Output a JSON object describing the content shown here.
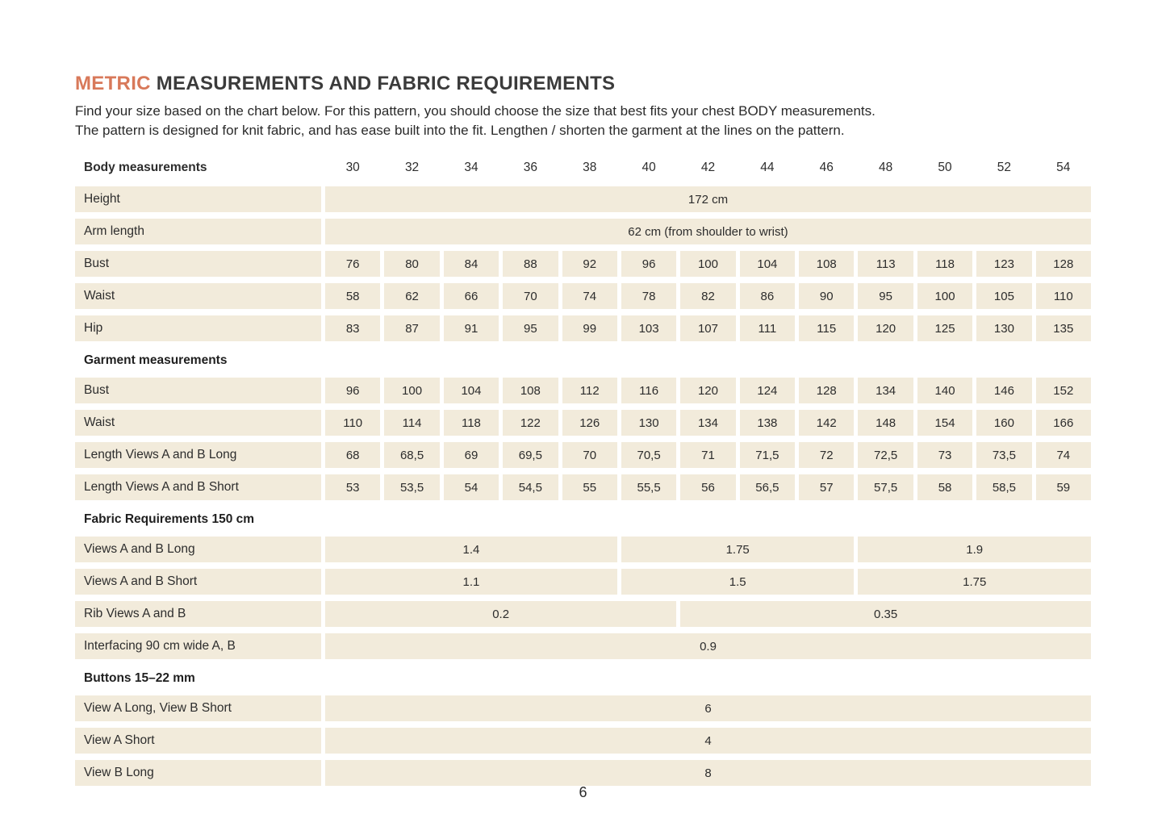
{
  "title": {
    "highlight": "METRIC",
    "rest": "MEASUREMENTS AND FABRIC REQUIREMENTS"
  },
  "intro": {
    "line1": "Find your size based on the chart below. For this pattern, you should choose the size that best fits your chest BODY measurements.",
    "line2": "The pattern is designed for knit fabric, and has ease built into the fit. Lengthen / shorten the garment at the lines on the pattern."
  },
  "colors": {
    "accent_orange": "#d8795a",
    "row_beige": "#f2ebdb"
  },
  "sizes": [
    "30",
    "32",
    "34",
    "36",
    "38",
    "40",
    "42",
    "44",
    "46",
    "48",
    "50",
    "52",
    "54"
  ],
  "sections": [
    {
      "header": "Body measurements",
      "show_sizes": true,
      "rows": [
        {
          "label": "Height",
          "merged": [
            {
              "span": 13,
              "text": "172 cm"
            }
          ]
        },
        {
          "label": "Arm length",
          "merged": [
            {
              "span": 13,
              "text": "62 cm (from shoulder to wrist)"
            }
          ]
        },
        {
          "label": "Bust",
          "values": [
            "76",
            "80",
            "84",
            "88",
            "92",
            "96",
            "100",
            "104",
            "108",
            "113",
            "118",
            "123",
            "128"
          ]
        },
        {
          "label": "Waist",
          "values": [
            "58",
            "62",
            "66",
            "70",
            "74",
            "78",
            "82",
            "86",
            "90",
            "95",
            "100",
            "105",
            "110"
          ]
        },
        {
          "label": "Hip",
          "values": [
            "83",
            "87",
            "91",
            "95",
            "99",
            "103",
            "107",
            "111",
            "115",
            "120",
            "125",
            "130",
            "135"
          ]
        }
      ]
    },
    {
      "header": "Garment measurements",
      "show_sizes": false,
      "rows": [
        {
          "label": "Bust",
          "values": [
            "96",
            "100",
            "104",
            "108",
            "112",
            "116",
            "120",
            "124",
            "128",
            "134",
            "140",
            "146",
            "152"
          ]
        },
        {
          "label": "Waist",
          "values": [
            "110",
            "114",
            "118",
            "122",
            "126",
            "130",
            "134",
            "138",
            "142",
            "148",
            "154",
            "160",
            "166"
          ]
        },
        {
          "label": "Length Views A and B Long",
          "values": [
            "68",
            "68,5",
            "69",
            "69,5",
            "70",
            "70,5",
            "71",
            "71,5",
            "72",
            "72,5",
            "73",
            "73,5",
            "74"
          ]
        },
        {
          "label": "Length Views A and B Short",
          "values": [
            "53",
            "53,5",
            "54",
            "54,5",
            "55",
            "55,5",
            "56",
            "56,5",
            "57",
            "57,5",
            "58",
            "58,5",
            "59"
          ]
        }
      ]
    },
    {
      "header": "Fabric Requirements 150 cm",
      "show_sizes": false,
      "rows": [
        {
          "label": "Views A and B Long",
          "merged": [
            {
              "span": 5,
              "text": "1.4"
            },
            {
              "span": 4,
              "text": "1.75"
            },
            {
              "span": 4,
              "text": "1.9"
            }
          ]
        },
        {
          "label": "Views A and B Short",
          "merged": [
            {
              "span": 5,
              "text": "1.1"
            },
            {
              "span": 4,
              "text": "1.5"
            },
            {
              "span": 4,
              "text": "1.75"
            }
          ]
        },
        {
          "label": "Rib Views A and B",
          "merged": [
            {
              "span": 6,
              "text": "0.2"
            },
            {
              "span": 7,
              "text": "0.35"
            }
          ]
        },
        {
          "label": "Interfacing 90 cm wide A, B",
          "merged": [
            {
              "span": 13,
              "text": "0.9"
            }
          ]
        }
      ]
    },
    {
      "header": "Buttons 15–22 mm",
      "show_sizes": false,
      "rows": [
        {
          "label": "View A Long, View B Short",
          "merged": [
            {
              "span": 13,
              "text": "6"
            }
          ]
        },
        {
          "label": "View A Short",
          "merged": [
            {
              "span": 13,
              "text": "4"
            }
          ]
        },
        {
          "label": "View B Long",
          "merged": [
            {
              "span": 13,
              "text": "8"
            }
          ]
        }
      ]
    }
  ],
  "footer": {
    "page_number": "6"
  }
}
